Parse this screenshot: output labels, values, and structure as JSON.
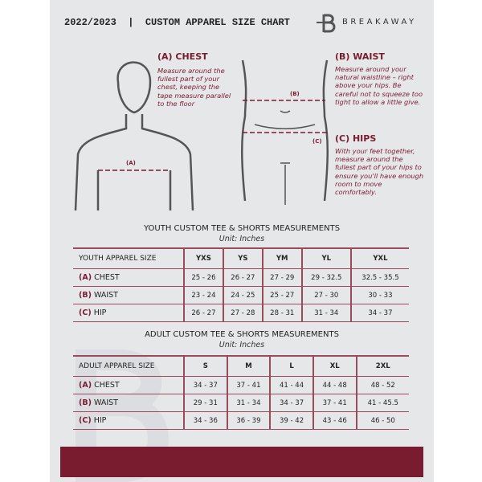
{
  "header": {
    "title": "2022/2023  |  CUSTOM APPAREL SIZE CHART",
    "brand": "BREAKAWAY"
  },
  "guides": {
    "chest": {
      "title": "(A) CHEST",
      "text": "Measure around the fullest part of your chest, keeping the tape measure parallel to the floor",
      "marker": "(A)"
    },
    "waist": {
      "title": "(B) WAIST",
      "text": "Measure around your natural waistline – right above your hips. Be careful not to squeeze too tight to allow a little give.",
      "marker": "(B)"
    },
    "hips": {
      "title": "(C) HIPS",
      "text": "With your feet together, measure around the fullest part of your hips to ensure you'll have enough room to move comfortably.",
      "marker": "(C)"
    }
  },
  "youth": {
    "title": "YOUTH CUSTOM TEE & SHORTS MEASUREMENTS",
    "unit": "Unit: Inches",
    "label": "YOUTH APPAREL SIZE",
    "sizes": [
      "YXS",
      "YS",
      "YM",
      "YL",
      "YXL"
    ],
    "rows": [
      {
        "code": "(A)",
        "name": "CHEST",
        "values": [
          "25 - 26",
          "26 - 27",
          "27 - 29",
          "29 - 32.5",
          "32.5 - 35.5"
        ]
      },
      {
        "code": "(B)",
        "name": "WAIST",
        "values": [
          "23 - 24",
          "24 - 25",
          "25 - 27",
          "27 - 30",
          "30 - 33"
        ]
      },
      {
        "code": "(C)",
        "name": "HIP",
        "values": [
          "26 - 27",
          "27 - 28",
          "28 - 31",
          "31 - 34",
          "34 - 37"
        ]
      }
    ]
  },
  "adult": {
    "title": "ADULT CUSTOM TEE & SHORTS MEASUREMENTS",
    "unit": "Unit: Inches",
    "label": "ADULT APPAREL SIZE",
    "sizes": [
      "S",
      "M",
      "L",
      "XL",
      "2XL"
    ],
    "rows": [
      {
        "code": "(A)",
        "name": "CHEST",
        "values": [
          "34 - 37",
          "37 - 41",
          "41 - 44",
          "44 - 48",
          "48 - 52"
        ]
      },
      {
        "code": "(B)",
        "name": "WAIST",
        "values": [
          "29 - 31",
          "31 - 34",
          "34 - 37",
          "37 - 41",
          "41 - 45.5"
        ]
      },
      {
        "code": "(C)",
        "name": "HIP",
        "values": [
          "34 - 36",
          "36 - 39",
          "39 - 42",
          "43 - 46",
          "46 - 50"
        ]
      }
    ]
  },
  "colors": {
    "accent": "#7a1c30",
    "background": "#e6e7e9"
  }
}
